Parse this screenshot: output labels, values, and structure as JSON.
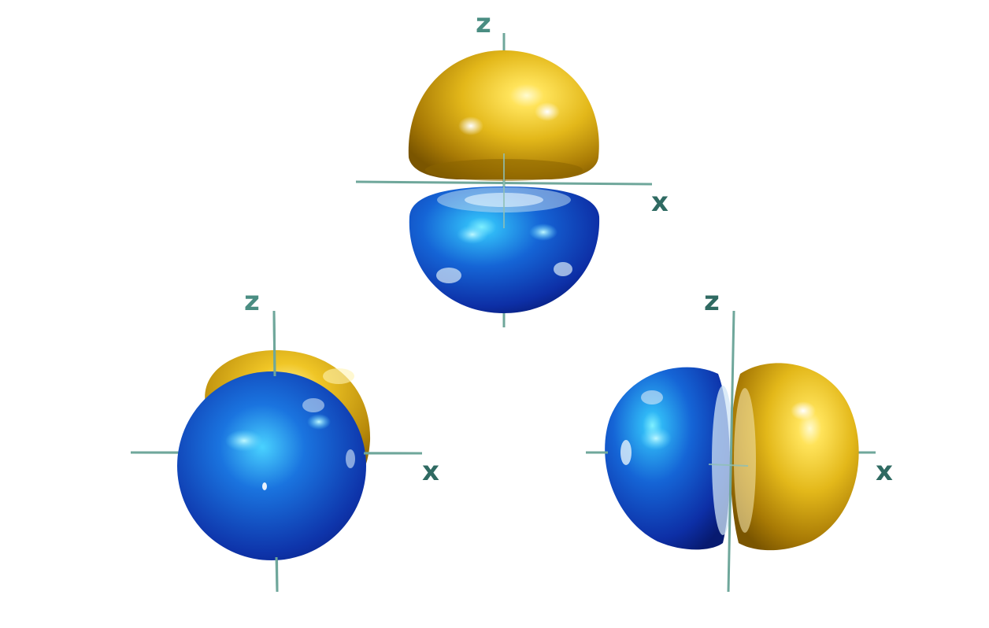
{
  "colors": {
    "axis": "#6fa79b",
    "label": "#2f6a62",
    "gold_light": "#fff2a0",
    "gold_mid": "#e3b81a",
    "gold_dark": "#8a6200",
    "blue_light": "#3fd0ff",
    "blue_mid": "#1660d8",
    "blue_dark": "#0a1f80"
  },
  "diagrams": [
    {
      "name": "top",
      "labels": {
        "z": "z",
        "x": "x"
      }
    },
    {
      "name": "bottom-left",
      "labels": {
        "z": "z",
        "x": "x"
      }
    },
    {
      "name": "bottom-right",
      "labels": {
        "z": "z",
        "x": "x"
      }
    }
  ]
}
